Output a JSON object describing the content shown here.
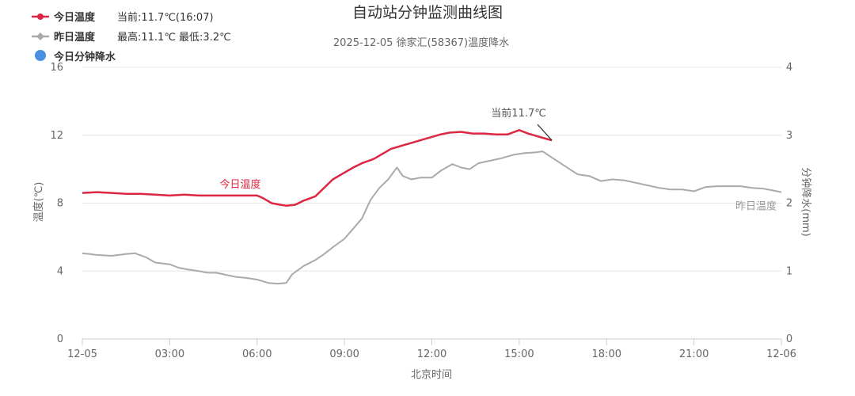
{
  "chart_data": {
    "type": "line",
    "title": "自动站分钟监测曲线图",
    "subtitle": "2025-12-05 徐家汇(58367)温度降水",
    "xlabel": "北京时间",
    "ylabel_left": "温度(℃)",
    "ylabel_right": "分钟降水(mm)",
    "ylim_left": [
      0,
      16
    ],
    "ylim_right": [
      0,
      4
    ],
    "yticks_left": [
      "0",
      "4",
      "8",
      "12",
      "16"
    ],
    "yticks_right": [
      "0",
      "1",
      "2",
      "3",
      "4"
    ],
    "xlim_hours": [
      0,
      24
    ],
    "xticks": [
      {
        "h": 0,
        "label": "12-05"
      },
      {
        "h": 3,
        "label": "03:00"
      },
      {
        "h": 6,
        "label": "06:00"
      },
      {
        "h": 9,
        "label": "09:00"
      },
      {
        "h": 12,
        "label": "12:00"
      },
      {
        "h": 15,
        "label": "15:00"
      },
      {
        "h": 18,
        "label": "18:00"
      },
      {
        "h": 21,
        "label": "21:00"
      },
      {
        "h": 24,
        "label": "12-06"
      }
    ],
    "grid": true,
    "legend_position": "top-left",
    "legend": [
      {
        "name": "今日温度",
        "info": "当前:11.7℃(16:07)",
        "color": "#dc2743",
        "marker": "circle"
      },
      {
        "name": "昨日温度",
        "info": "最高:11.1℃ 最低:3.2℃",
        "color": "#aaaaaa",
        "marker": "diamond"
      },
      {
        "name": "今日分钟降水",
        "info": "",
        "color": "#4a90e2",
        "marker": "circle"
      }
    ],
    "series": [
      {
        "name": "今日温度",
        "axis": "left",
        "color": "#dc2743",
        "label": "今日温度",
        "points": [
          [
            0.0,
            8.6
          ],
          [
            0.5,
            8.65
          ],
          [
            1.0,
            8.6
          ],
          [
            1.5,
            8.55
          ],
          [
            2.0,
            8.55
          ],
          [
            2.5,
            8.5
          ],
          [
            3.0,
            8.45
          ],
          [
            3.5,
            8.5
          ],
          [
            4.0,
            8.45
          ],
          [
            4.5,
            8.45
          ],
          [
            5.0,
            8.45
          ],
          [
            5.5,
            8.45
          ],
          [
            6.0,
            8.45
          ],
          [
            6.2,
            8.3
          ],
          [
            6.5,
            8.0
          ],
          [
            6.8,
            7.9
          ],
          [
            7.0,
            7.85
          ],
          [
            7.3,
            7.9
          ],
          [
            7.6,
            8.15
          ],
          [
            8.0,
            8.4
          ],
          [
            8.3,
            8.9
          ],
          [
            8.6,
            9.4
          ],
          [
            9.0,
            9.8
          ],
          [
            9.3,
            10.1
          ],
          [
            9.6,
            10.35
          ],
          [
            10.0,
            10.6
          ],
          [
            10.3,
            10.9
          ],
          [
            10.6,
            11.2
          ],
          [
            11.0,
            11.4
          ],
          [
            11.3,
            11.55
          ],
          [
            11.7,
            11.75
          ],
          [
            12.0,
            11.9
          ],
          [
            12.3,
            12.05
          ],
          [
            12.6,
            12.15
          ],
          [
            13.0,
            12.2
          ],
          [
            13.4,
            12.1
          ],
          [
            13.8,
            12.1
          ],
          [
            14.2,
            12.05
          ],
          [
            14.6,
            12.05
          ],
          [
            15.0,
            12.3
          ],
          [
            15.3,
            12.1
          ],
          [
            15.6,
            11.95
          ],
          [
            15.9,
            11.8
          ],
          [
            16.12,
            11.7
          ]
        ]
      },
      {
        "name": "昨日温度",
        "axis": "left",
        "color": "#aaaaaa",
        "label": "昨日温度",
        "points": [
          [
            0.0,
            5.05
          ],
          [
            0.5,
            4.95
          ],
          [
            1.0,
            4.9
          ],
          [
            1.5,
            5.0
          ],
          [
            1.8,
            5.05
          ],
          [
            2.2,
            4.8
          ],
          [
            2.5,
            4.5
          ],
          [
            3.0,
            4.4
          ],
          [
            3.3,
            4.2
          ],
          [
            3.6,
            4.1
          ],
          [
            4.0,
            4.0
          ],
          [
            4.3,
            3.9
          ],
          [
            4.6,
            3.9
          ],
          [
            5.0,
            3.75
          ],
          [
            5.3,
            3.65
          ],
          [
            5.6,
            3.6
          ],
          [
            6.0,
            3.5
          ],
          [
            6.4,
            3.3
          ],
          [
            6.7,
            3.25
          ],
          [
            7.0,
            3.3
          ],
          [
            7.2,
            3.8
          ],
          [
            7.6,
            4.3
          ],
          [
            8.0,
            4.65
          ],
          [
            8.3,
            5.0
          ],
          [
            8.6,
            5.4
          ],
          [
            9.0,
            5.9
          ],
          [
            9.3,
            6.5
          ],
          [
            9.6,
            7.1
          ],
          [
            9.9,
            8.2
          ],
          [
            10.2,
            8.9
          ],
          [
            10.5,
            9.4
          ],
          [
            10.8,
            10.1
          ],
          [
            11.0,
            9.6
          ],
          [
            11.3,
            9.4
          ],
          [
            11.6,
            9.5
          ],
          [
            12.0,
            9.5
          ],
          [
            12.3,
            9.9
          ],
          [
            12.7,
            10.3
          ],
          [
            13.0,
            10.1
          ],
          [
            13.3,
            10.0
          ],
          [
            13.6,
            10.35
          ],
          [
            14.0,
            10.5
          ],
          [
            14.4,
            10.65
          ],
          [
            14.8,
            10.85
          ],
          [
            15.2,
            10.95
          ],
          [
            15.6,
            11.0
          ],
          [
            15.8,
            11.05
          ],
          [
            16.2,
            10.6
          ],
          [
            16.6,
            10.15
          ],
          [
            17.0,
            9.7
          ],
          [
            17.4,
            9.6
          ],
          [
            17.8,
            9.3
          ],
          [
            18.2,
            9.4
          ],
          [
            18.6,
            9.35
          ],
          [
            19.0,
            9.2
          ],
          [
            19.4,
            9.05
          ],
          [
            19.8,
            8.9
          ],
          [
            20.2,
            8.8
          ],
          [
            20.6,
            8.8
          ],
          [
            21.0,
            8.7
          ],
          [
            21.4,
            8.95
          ],
          [
            21.8,
            9.0
          ],
          [
            22.2,
            9.0
          ],
          [
            22.6,
            9.0
          ],
          [
            23.0,
            8.9
          ],
          [
            23.4,
            8.85
          ],
          [
            23.7,
            8.75
          ],
          [
            24.0,
            8.65
          ]
        ]
      },
      {
        "name": "今日分钟降水",
        "axis": "right",
        "color": "#4a90e2",
        "points": []
      }
    ],
    "annotations": [
      {
        "text": "当前11.7℃",
        "x": 16.12,
        "y": 11.7
      }
    ]
  }
}
